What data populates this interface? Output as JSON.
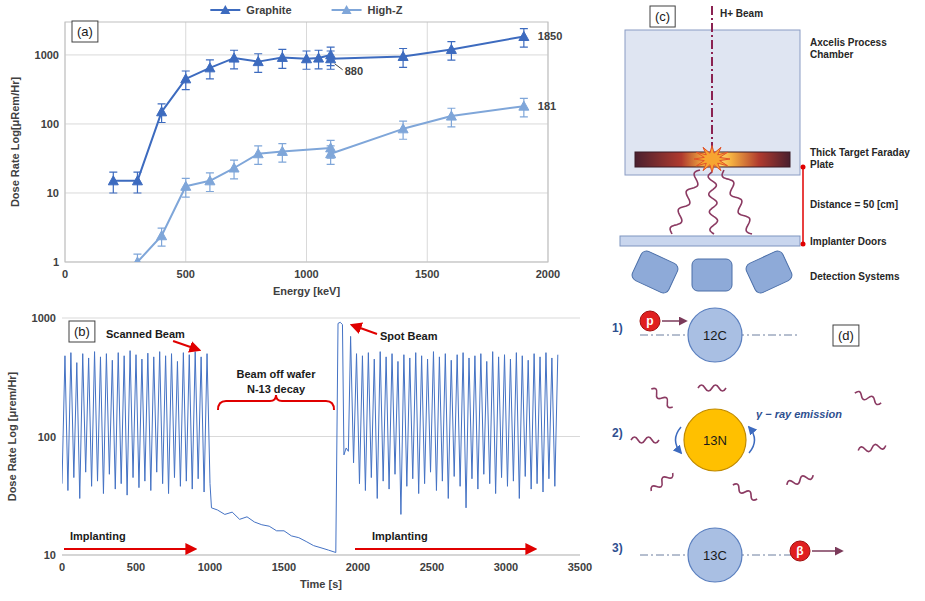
{
  "chart_data": [
    {
      "type": "line",
      "panel_label": "(a)",
      "x_label": "Energy [keV]",
      "y_label": "Dose Rate Log[μRem/Hr]",
      "log": "y",
      "grid": true,
      "legend": "top",
      "xlim": [
        0,
        2000
      ],
      "xticks": [
        0,
        500,
        1000,
        1500,
        2000
      ],
      "ylim": [
        1,
        3000
      ],
      "yticks": [
        1,
        10,
        100,
        1000
      ],
      "series": [
        {
          "name": "Graphite",
          "color": "#3d6bbf",
          "marker": "triangle",
          "x": [
            200,
            300,
            400,
            500,
            600,
            700,
            800,
            900,
            1000,
            1050,
            1100,
            1100,
            1400,
            1600,
            1900
          ],
          "values": [
            15,
            15,
            150,
            450,
            650,
            900,
            800,
            920,
            880,
            900,
            1000,
            880,
            950,
            1200,
            1850
          ],
          "errors": [
            5,
            5,
            45,
            135,
            200,
            270,
            240,
            280,
            260,
            270,
            300,
            260,
            290,
            360,
            550
          ]
        },
        {
          "name": "High-Z",
          "color": "#7fa6d9",
          "marker": "triangle",
          "x": [
            300,
            400,
            500,
            600,
            700,
            800,
            900,
            1100,
            1100,
            1400,
            1600,
            1900
          ],
          "values": [
            1,
            2.4,
            12.5,
            15,
            23,
            37,
            40,
            45,
            37,
            85,
            130,
            181
          ],
          "errors": [
            0.3,
            0.7,
            3.8,
            4.5,
            7,
            11,
            12,
            13,
            11,
            25,
            39,
            54
          ]
        }
      ],
      "annotations": [
        {
          "label": "880",
          "x": 1100,
          "y": 880
        },
        {
          "label": "1850",
          "x": 1900,
          "y": 1850
        },
        {
          "label": "181",
          "x": 1900,
          "y": 181
        }
      ]
    },
    {
      "type": "line",
      "panel_label": "(b)",
      "x_label": "Time [s]",
      "y_label": "Dose Rate Log [μrem/Hr]",
      "log": "y",
      "grid": "y",
      "xlim": [
        0,
        3500
      ],
      "xticks": [
        0,
        500,
        1000,
        1500,
        2000,
        2500,
        3000,
        3500
      ],
      "ylim": [
        10,
        1000
      ],
      "yticks": [
        10,
        100,
        1000
      ],
      "series": [
        {
          "color": "#4472c4",
          "x": [
            0,
            20,
            40,
            60,
            80,
            100,
            120,
            140,
            160,
            180,
            200,
            220,
            240,
            260,
            280,
            300,
            320,
            340,
            360,
            380,
            400,
            420,
            440,
            460,
            480,
            500,
            520,
            540,
            560,
            580,
            600,
            620,
            640,
            660,
            680,
            700,
            720,
            740,
            760,
            780,
            800,
            820,
            840,
            860,
            880,
            900,
            920,
            940,
            960,
            980,
            1000,
            1010,
            1050,
            1100,
            1150,
            1200,
            1250,
            1300,
            1350,
            1400,
            1450,
            1500,
            1550,
            1600,
            1650,
            1700,
            1750,
            1800,
            1850,
            1865,
            1880,
            1895,
            1905,
            1920,
            1935,
            1950,
            1970,
            1990,
            2010,
            2030,
            2050,
            2070,
            2090,
            2110,
            2130,
            2150,
            2170,
            2190,
            2210,
            2230,
            2250,
            2270,
            2290,
            2310,
            2330,
            2350,
            2370,
            2390,
            2410,
            2430,
            2450,
            2470,
            2490,
            2510,
            2530,
            2550,
            2570,
            2590,
            2610,
            2630,
            2650,
            2670,
            2690,
            2710,
            2730,
            2750,
            2770,
            2790,
            2810,
            2830,
            2850,
            2870,
            2890,
            2910,
            2930,
            2950,
            2970,
            2990,
            3010,
            3030,
            3050,
            3070,
            3090,
            3110,
            3130,
            3150,
            3170,
            3190,
            3210,
            3230,
            3250,
            3270,
            3290,
            3310,
            3330,
            3350
          ],
          "values": [
            40,
            480,
            35,
            510,
            45,
            420,
            30,
            500,
            50,
            460,
            38,
            520,
            42,
            470,
            33,
            500,
            48,
            440,
            36,
            510,
            40,
            480,
            32,
            530,
            45,
            490,
            37,
            450,
            42,
            505,
            35,
            470,
            50,
            520,
            40,
            480,
            33,
            500,
            45,
            430,
            38,
            510,
            42,
            490,
            36,
            520,
            44,
            470,
            34,
            500,
            40,
            25,
            24,
            22,
            23,
            20,
            21,
            19,
            18,
            17.5,
            16,
            16,
            14.5,
            14,
            13,
            12,
            11.5,
            11,
            10.5,
            900,
            920,
            880,
            70,
            80,
            75,
            700,
            60,
            500,
            40,
            480,
            35,
            510,
            45,
            450,
            30,
            520,
            42,
            470,
            36,
            500,
            48,
            430,
            22,
            490,
            38,
            460,
            44,
            510,
            33,
            480,
            40,
            450,
            50,
            520,
            35,
            470,
            42,
            500,
            30,
            440,
            46,
            490,
            38,
            510,
            25,
            460,
            44,
            480,
            36,
            500,
            48,
            430,
            40,
            520,
            33,
            470,
            45,
            490,
            38,
            450,
            42,
            510,
            30,
            480,
            46,
            440,
            36,
            500,
            40,
            470,
            34,
            510,
            44,
            460,
            38,
            490
          ]
        }
      ],
      "annotations": [
        {
          "label": "Scanned Beam"
        },
        {
          "label": "Beam off wafer"
        },
        {
          "label": "N-13 decay"
        },
        {
          "label": "Spot Beam"
        },
        {
          "label": "Implanting"
        },
        {
          "label": "Implanting"
        }
      ]
    }
  ],
  "diagram_c": {
    "panel_label": "(c)",
    "beam": "H+ Beam",
    "chamber": "Axcelis Process Chamber",
    "target": "Thick Target Faraday Plate",
    "distance": "Distance = 50 [cm]",
    "doors": "Implanter Doors",
    "detectors": "Detection Systems"
  },
  "diagram_d": {
    "panel_label": "(d)",
    "steps": [
      {
        "label": "1)",
        "particle": "p",
        "nucleus": "12C"
      },
      {
        "label": "2)",
        "nucleus": "13N",
        "emission": "γ − ray emission"
      },
      {
        "label": "3)",
        "nucleus": "13C",
        "particle": "β"
      }
    ]
  }
}
